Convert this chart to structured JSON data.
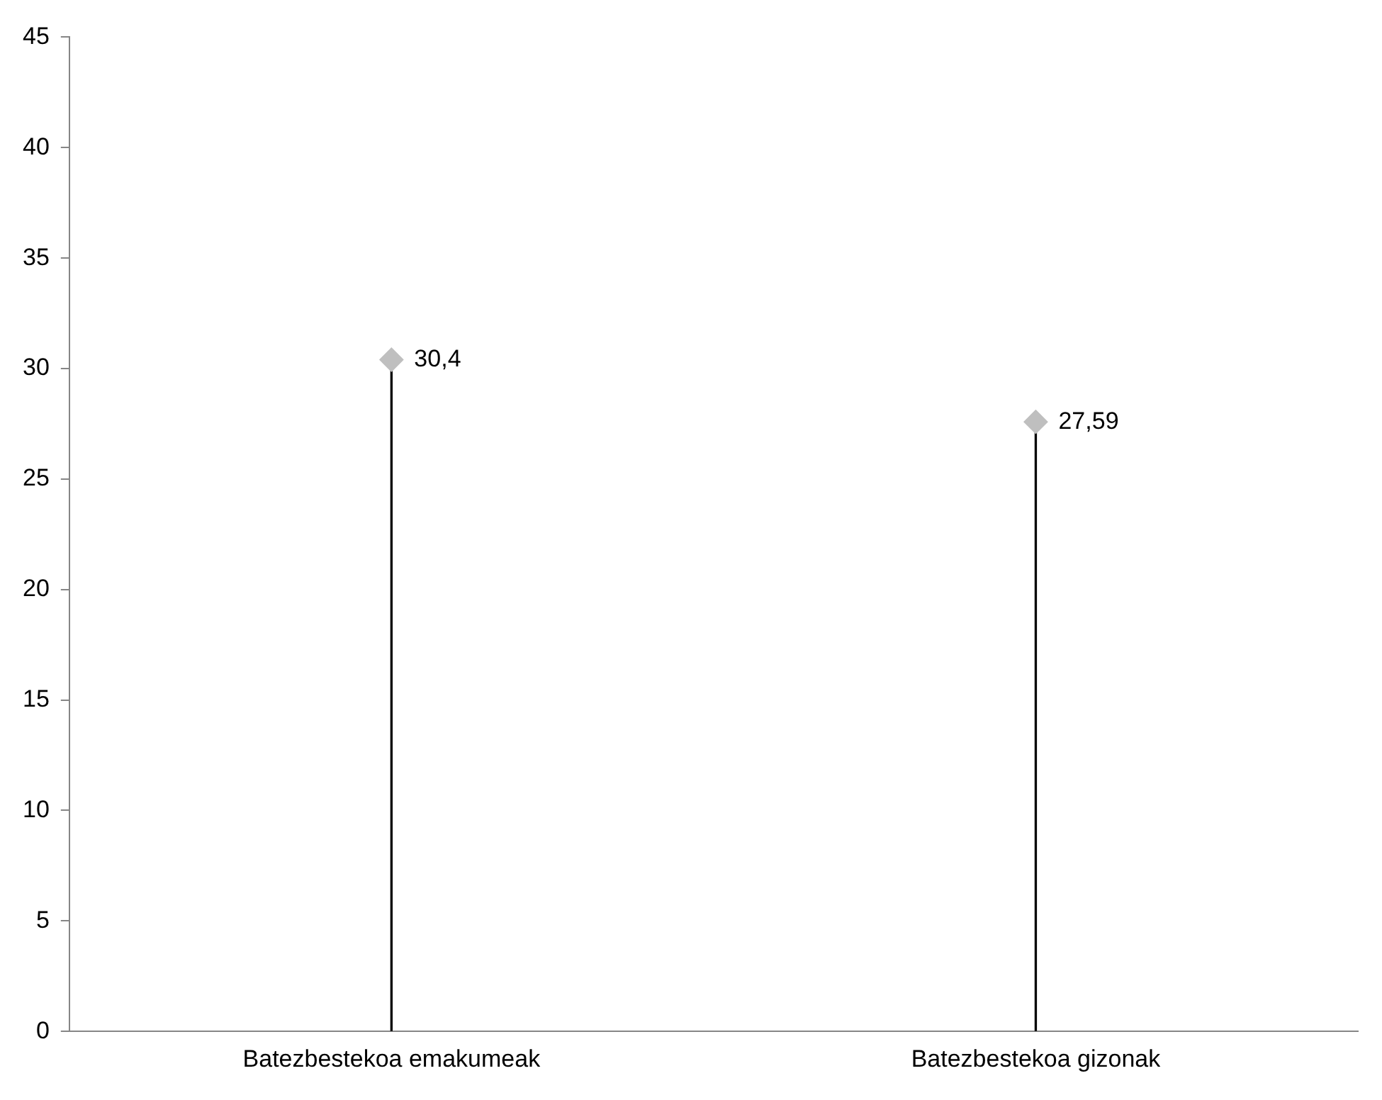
{
  "chart_data": {
    "type": "lollipop",
    "categories": [
      "Batezbestekoa emakumeak",
      "Batezbestekoa gizonak"
    ],
    "values": [
      30.4,
      27.59
    ],
    "value_labels": [
      "30,4",
      "27,59"
    ],
    "color": "#bfbfbf",
    "marker": "diamond",
    "ylim": [
      0,
      45
    ],
    "yticks": [
      0,
      5,
      10,
      15,
      20,
      25,
      30,
      35,
      40,
      45
    ],
    "grid": false,
    "legend": false
  }
}
